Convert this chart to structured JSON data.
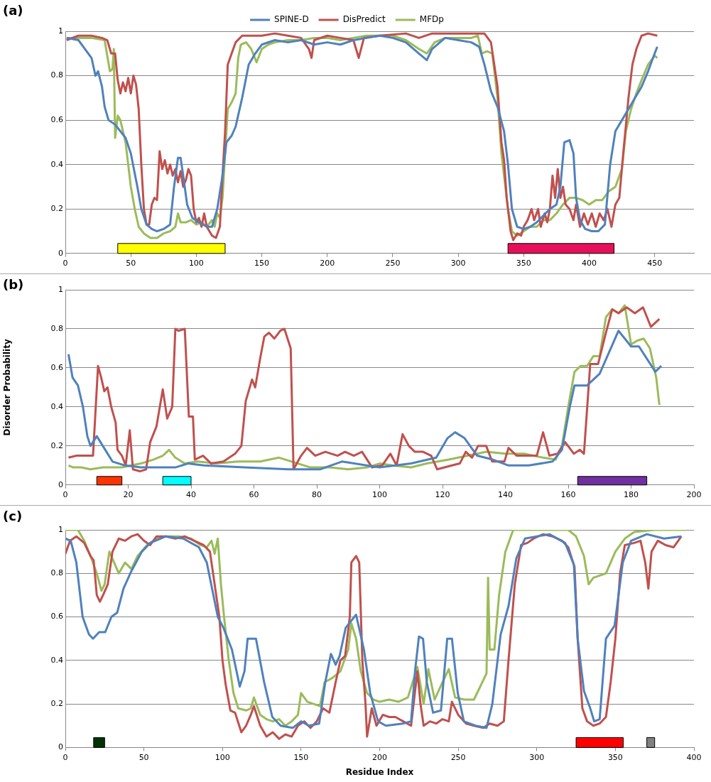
{
  "chart_data": [
    {
      "type": "line",
      "title": "(a)",
      "xlim": [
        0,
        480
      ],
      "xticks": [
        0,
        50,
        100,
        150,
        200,
        250,
        300,
        350,
        400,
        450
      ],
      "ylim": [
        0,
        1
      ],
      "yticks": [
        0,
        0.2,
        0.4,
        0.6,
        0.8,
        1
      ],
      "grid": "y",
      "legend": "top",
      "marker": "none",
      "line_style": "solid",
      "bands": [
        {
          "axis": "x",
          "from": 40,
          "to": 122,
          "color": "#ffff00"
        },
        {
          "axis": "x",
          "from": 338,
          "to": 419,
          "color": "#e6105a"
        }
      ],
      "series": [
        {
          "name": "SPINE-D",
          "color": "#4f81bd",
          "x": [
            1,
            10,
            15,
            20,
            23,
            25,
            28,
            30,
            33,
            38,
            42,
            46,
            50,
            55,
            58,
            62,
            66,
            70,
            75,
            80,
            83,
            86,
            88,
            90,
            93,
            97,
            102,
            108,
            112,
            116,
            120,
            123,
            127,
            130,
            135,
            140,
            145,
            150,
            160,
            170,
            180,
            190,
            200,
            210,
            220,
            230,
            240,
            250,
            260,
            270,
            276,
            280,
            290,
            300,
            310,
            316,
            320,
            325,
            330,
            335,
            338,
            341,
            345,
            350,
            355,
            360,
            365,
            370,
            375,
            378,
            381,
            385,
            388,
            390,
            393,
            397,
            402,
            407,
            412,
            416,
            420,
            425,
            430,
            435,
            440,
            445,
            450,
            452
          ],
          "values": [
            0.97,
            0.96,
            0.92,
            0.88,
            0.8,
            0.82,
            0.75,
            0.66,
            0.6,
            0.58,
            0.55,
            0.52,
            0.45,
            0.3,
            0.2,
            0.13,
            0.11,
            0.1,
            0.11,
            0.13,
            0.3,
            0.43,
            0.43,
            0.35,
            0.22,
            0.16,
            0.14,
            0.12,
            0.12,
            0.2,
            0.35,
            0.5,
            0.53,
            0.57,
            0.7,
            0.85,
            0.9,
            0.94,
            0.96,
            0.95,
            0.96,
            0.94,
            0.95,
            0.94,
            0.96,
            0.97,
            0.98,
            0.97,
            0.95,
            0.9,
            0.87,
            0.92,
            0.97,
            0.96,
            0.95,
            0.93,
            0.85,
            0.73,
            0.66,
            0.55,
            0.4,
            0.2,
            0.12,
            0.11,
            0.12,
            0.14,
            0.17,
            0.2,
            0.22,
            0.3,
            0.5,
            0.51,
            0.45,
            0.25,
            0.15,
            0.11,
            0.1,
            0.1,
            0.13,
            0.4,
            0.55,
            0.6,
            0.65,
            0.7,
            0.75,
            0.82,
            0.9,
            0.93
          ]
        },
        {
          "name": "DisPredict",
          "color": "#c0504d",
          "x": [
            1,
            10,
            20,
            28,
            32,
            35,
            38,
            40,
            42,
            44,
            46,
            48,
            50,
            52,
            54,
            56,
            58,
            60,
            62,
            64,
            66,
            68,
            70,
            72,
            74,
            76,
            78,
            80,
            82,
            84,
            86,
            88,
            90,
            92,
            94,
            96,
            98,
            100,
            102,
            104,
            106,
            108,
            110,
            112,
            115,
            118,
            120,
            122,
            124,
            127,
            130,
            135,
            140,
            150,
            160,
            170,
            180,
            186,
            188,
            190,
            200,
            210,
            220,
            224,
            228,
            240,
            260,
            270,
            280,
            290,
            300,
            310,
            320,
            325,
            330,
            333,
            335,
            337,
            340,
            342,
            345,
            348,
            350,
            353,
            356,
            358,
            361,
            363,
            366,
            368,
            370,
            372,
            374,
            376,
            378,
            380,
            382,
            385,
            388,
            390,
            393,
            396,
            399,
            402,
            405,
            408,
            411,
            414,
            417,
            420,
            423,
            426,
            430,
            433,
            436,
            440,
            445,
            452
          ],
          "values": [
            0.96,
            0.98,
            0.98,
            0.97,
            0.96,
            0.9,
            0.9,
            0.78,
            0.72,
            0.77,
            0.73,
            0.79,
            0.72,
            0.8,
            0.76,
            0.65,
            0.4,
            0.2,
            0.13,
            0.13,
            0.22,
            0.25,
            0.24,
            0.46,
            0.38,
            0.42,
            0.36,
            0.4,
            0.35,
            0.38,
            0.32,
            0.37,
            0.3,
            0.33,
            0.38,
            0.35,
            0.2,
            0.14,
            0.16,
            0.12,
            0.18,
            0.12,
            0.1,
            0.08,
            0.07,
            0.12,
            0.35,
            0.55,
            0.85,
            0.9,
            0.95,
            0.98,
            0.98,
            0.98,
            0.99,
            0.98,
            0.97,
            0.92,
            0.88,
            0.96,
            0.98,
            0.97,
            0.96,
            0.88,
            0.97,
            0.98,
            0.99,
            0.97,
            0.99,
            0.99,
            0.99,
            0.99,
            0.99,
            0.95,
            0.75,
            0.5,
            0.42,
            0.25,
            0.1,
            0.06,
            0.09,
            0.08,
            0.12,
            0.15,
            0.2,
            0.15,
            0.2,
            0.12,
            0.18,
            0.14,
            0.2,
            0.35,
            0.25,
            0.38,
            0.25,
            0.3,
            0.22,
            0.2,
            0.15,
            0.22,
            0.12,
            0.18,
            0.13,
            0.18,
            0.12,
            0.18,
            0.15,
            0.2,
            0.12,
            0.22,
            0.25,
            0.45,
            0.7,
            0.85,
            0.92,
            0.98,
            0.99,
            0.98
          ]
        },
        {
          "name": "MFDp",
          "color": "#9bbb59",
          "x": [
            1,
            10,
            20,
            30,
            34,
            36,
            37,
            38,
            40,
            42,
            44,
            46,
            48,
            50,
            53,
            56,
            60,
            65,
            70,
            75,
            80,
            84,
            86,
            88,
            92,
            96,
            100,
            104,
            108,
            112,
            114,
            116,
            118,
            120,
            122,
            124,
            127,
            130,
            132,
            134,
            138,
            142,
            146,
            150,
            155,
            160,
            170,
            180,
            190,
            200,
            210,
            220,
            230,
            240,
            250,
            260,
            265,
            270,
            276,
            282,
            290,
            300,
            310,
            315,
            318,
            322,
            326,
            330,
            333,
            336,
            338,
            341,
            345,
            350,
            355,
            360,
            365,
            370,
            375,
            380,
            385,
            390,
            395,
            400,
            405,
            410,
            415,
            420,
            425,
            428,
            432,
            436,
            440,
            445,
            450,
            452
          ],
          "values": [
            0.97,
            0.97,
            0.97,
            0.96,
            0.82,
            0.83,
            0.92,
            0.52,
            0.62,
            0.6,
            0.55,
            0.5,
            0.4,
            0.3,
            0.2,
            0.12,
            0.09,
            0.07,
            0.07,
            0.09,
            0.1,
            0.12,
            0.18,
            0.14,
            0.14,
            0.15,
            0.13,
            0.14,
            0.12,
            0.15,
            0.12,
            0.18,
            0.16,
            0.25,
            0.45,
            0.65,
            0.68,
            0.72,
            0.88,
            0.94,
            0.95,
            0.92,
            0.86,
            0.92,
            0.94,
            0.95,
            0.96,
            0.96,
            0.97,
            0.97,
            0.96,
            0.97,
            0.98,
            0.98,
            0.98,
            0.96,
            0.94,
            0.92,
            0.9,
            0.95,
            0.97,
            0.97,
            0.97,
            0.98,
            0.9,
            0.91,
            0.9,
            0.7,
            0.45,
            0.3,
            0.2,
            0.1,
            0.08,
            0.1,
            0.12,
            0.12,
            0.15,
            0.15,
            0.18,
            0.22,
            0.25,
            0.25,
            0.24,
            0.22,
            0.24,
            0.24,
            0.28,
            0.3,
            0.38,
            0.55,
            0.65,
            0.72,
            0.78,
            0.85,
            0.89,
            0.88
          ]
        }
      ]
    },
    {
      "type": "line",
      "title": "(b)",
      "ylabel": "Disorder Probability",
      "xlim": [
        0,
        200
      ],
      "xticks": [
        0,
        20,
        40,
        60,
        80,
        100,
        120,
        140,
        160,
        180,
        200
      ],
      "ylim": [
        0,
        1
      ],
      "yticks": [
        0,
        0.2,
        0.4,
        0.6,
        0.8,
        1
      ],
      "grid": "y",
      "marker": "none",
      "line_style": "solid",
      "bands": [
        {
          "axis": "x",
          "from": 10,
          "to": 18,
          "color": "#ff3300"
        },
        {
          "axis": "x",
          "from": 31,
          "to": 40,
          "color": "#00ffff"
        },
        {
          "axis": "x",
          "from": 163,
          "to": 185,
          "color": "#7030a0"
        }
      ],
      "series": [
        {
          "color": "#4f81bd",
          "x": [
            1,
            2.3,
            4,
            5.6,
            7,
            8,
            10,
            12.7,
            15,
            19,
            24,
            35,
            39,
            44,
            57,
            71,
            81,
            88,
            100,
            110,
            118,
            121.6,
            124,
            127,
            131,
            136,
            141,
            147.5,
            155,
            158,
            160.5,
            162,
            166,
            170,
            176,
            180,
            182.5,
            187.7,
            189.6
          ],
          "values": [
            0.67,
            0.55,
            0.51,
            0.4,
            0.25,
            0.2,
            0.25,
            0.18,
            0.12,
            0.1,
            0.09,
            0.09,
            0.11,
            0.1,
            0.09,
            0.08,
            0.08,
            0.12,
            0.09,
            0.11,
            0.14,
            0.24,
            0.27,
            0.24,
            0.15,
            0.13,
            0.1,
            0.1,
            0.12,
            0.18,
            0.4,
            0.51,
            0.51,
            0.57,
            0.79,
            0.71,
            0.71,
            0.58,
            0.61
          ]
        },
        {
          "color": "#c0504d",
          "x": [
            1,
            3.6,
            8.8,
            9.5,
            10.4,
            11.4,
            12.4,
            13.4,
            14.6,
            16,
            16.6,
            18,
            19.2,
            20.5,
            21.5,
            23.7,
            25.7,
            27,
            29,
            31,
            32.4,
            34,
            35,
            36,
            38,
            39.3,
            40.6,
            41.2,
            43.8,
            46.4,
            50.3,
            54,
            56,
            57.4,
            59.4,
            60.4,
            62,
            63.3,
            64.8,
            66.5,
            68.4,
            69.7,
            71.7,
            72.6,
            75,
            76.9,
            79.5,
            82.7,
            86.6,
            89,
            91.8,
            94.4,
            97.6,
            100.8,
            103.4,
            105.4,
            107.3,
            109.3,
            111.2,
            113.8,
            116.4,
            118.3,
            123,
            125.5,
            127.4,
            129.4,
            131.3,
            133.9,
            135.8,
            139.7,
            141,
            143.6,
            147.5,
            150,
            152,
            154,
            156.6,
            159,
            161.8,
            163.7,
            165,
            167,
            169.5,
            172,
            174,
            176,
            178.6,
            181.2,
            183.8,
            186.3,
            189
          ],
          "values": [
            0.14,
            0.15,
            0.15,
            0.35,
            0.61,
            0.55,
            0.48,
            0.5,
            0.4,
            0.32,
            0.18,
            0.15,
            0.1,
            0.28,
            0.08,
            0.07,
            0.08,
            0.22,
            0.3,
            0.49,
            0.34,
            0.4,
            0.8,
            0.79,
            0.8,
            0.35,
            0.35,
            0.13,
            0.15,
            0.11,
            0.12,
            0.16,
            0.2,
            0.43,
            0.54,
            0.5,
            0.65,
            0.76,
            0.78,
            0.75,
            0.79,
            0.8,
            0.7,
            0.08,
            0.15,
            0.19,
            0.15,
            0.17,
            0.15,
            0.17,
            0.15,
            0.17,
            0.09,
            0.1,
            0.16,
            0.1,
            0.26,
            0.2,
            0.17,
            0.17,
            0.15,
            0.08,
            0.1,
            0.11,
            0.17,
            0.14,
            0.2,
            0.2,
            0.12,
            0.12,
            0.19,
            0.15,
            0.15,
            0.15,
            0.27,
            0.15,
            0.16,
            0.22,
            0.16,
            0.18,
            0.16,
            0.62,
            0.62,
            0.78,
            0.9,
            0.88,
            0.91,
            0.88,
            0.91,
            0.81,
            0.85
          ]
        },
        {
          "color": "#9bbb59",
          "x": [
            1,
            2.5,
            5,
            8,
            12,
            18,
            24,
            28,
            31,
            33,
            35,
            38,
            42,
            48,
            55,
            62,
            68,
            72,
            78,
            84,
            90,
            96,
            100,
            104,
            110,
            115,
            122,
            128,
            134,
            140,
            146,
            152,
            156,
            158,
            160,
            162,
            164,
            166,
            168,
            170,
            172,
            174,
            176,
            178,
            180,
            182,
            184,
            186,
            188,
            189
          ],
          "values": [
            0.1,
            0.09,
            0.09,
            0.08,
            0.09,
            0.09,
            0.11,
            0.13,
            0.15,
            0.18,
            0.14,
            0.11,
            0.12,
            0.11,
            0.12,
            0.12,
            0.14,
            0.12,
            0.09,
            0.09,
            0.08,
            0.09,
            0.11,
            0.1,
            0.09,
            0.11,
            0.13,
            0.15,
            0.17,
            0.16,
            0.16,
            0.14,
            0.13,
            0.2,
            0.4,
            0.58,
            0.61,
            0.61,
            0.66,
            0.66,
            0.86,
            0.9,
            0.88,
            0.92,
            0.72,
            0.74,
            0.75,
            0.7,
            0.55,
            0.41
          ]
        }
      ]
    },
    {
      "type": "line",
      "title": "(c)",
      "xlabel": "Residue Index",
      "xlim": [
        0,
        400
      ],
      "xticks": [
        0,
        50,
        100,
        150,
        200,
        250,
        300,
        350,
        400
      ],
      "ylim": [
        0,
        1
      ],
      "yticks": [
        0,
        0.2,
        0.4,
        0.6,
        0.8,
        1
      ],
      "grid": "y",
      "marker": "none",
      "line_style": "solid",
      "bands": [
        {
          "axis": "x",
          "from": 18,
          "to": 25,
          "color": "#003300"
        },
        {
          "axis": "x",
          "from": 325,
          "to": 355,
          "color": "#ff0000"
        },
        {
          "axis": "x",
          "from": 370,
          "to": 375,
          "color": "#808080"
        }
      ],
      "series": [
        {
          "color": "#4f81bd",
          "x": [
            0,
            3.4,
            7,
            11,
            15,
            17.6,
            21.5,
            25.4,
            29.3,
            33,
            37,
            42,
            48.7,
            54,
            64,
            75,
            85,
            90,
            97,
            100.6,
            106,
            111,
            114,
            116,
            121.3,
            126.5,
            131.7,
            137,
            144.7,
            150,
            155,
            161.5,
            165.4,
            169,
            172,
            174.5,
            178.4,
            185,
            190,
            194,
            199,
            204,
            214.7,
            220,
            222.5,
            225,
            227.6,
            230,
            234,
            239,
            243,
            246,
            249.7,
            253.6,
            261,
            268,
            271.7,
            277,
            282,
            287,
            292.5,
            308,
            318,
            323.6,
            326,
            330,
            334,
            336.5,
            340,
            344,
            349.5,
            354.7,
            360,
            370,
            381,
            392
          ],
          "values": [
            0.96,
            0.95,
            0.85,
            0.6,
            0.52,
            0.5,
            0.53,
            0.53,
            0.6,
            0.62,
            0.73,
            0.81,
            0.9,
            0.94,
            0.97,
            0.96,
            0.92,
            0.85,
            0.6,
            0.55,
            0.45,
            0.28,
            0.35,
            0.5,
            0.5,
            0.3,
            0.14,
            0.1,
            0.09,
            0.12,
            0.1,
            0.11,
            0.3,
            0.43,
            0.38,
            0.42,
            0.55,
            0.61,
            0.45,
            0.25,
            0.12,
            0.1,
            0.11,
            0.12,
            0.35,
            0.51,
            0.5,
            0.3,
            0.16,
            0.17,
            0.5,
            0.5,
            0.25,
            0.12,
            0.1,
            0.09,
            0.2,
            0.52,
            0.65,
            0.87,
            0.96,
            0.98,
            0.94,
            0.84,
            0.5,
            0.26,
            0.18,
            0.12,
            0.13,
            0.5,
            0.56,
            0.85,
            0.95,
            0.98,
            0.96,
            0.97
          ]
        },
        {
          "color": "#c0504d",
          "x": [
            0,
            3,
            7,
            12,
            16,
            18,
            20,
            22,
            24,
            27,
            30,
            34,
            38,
            42,
            46,
            50,
            54,
            58,
            64,
            70,
            76,
            82,
            88,
            92,
            95,
            98,
            100,
            102,
            105,
            108,
            112,
            115,
            118,
            120,
            124,
            128,
            132,
            136,
            140,
            144,
            148,
            152,
            156,
            160,
            164,
            168,
            172,
            175,
            178,
            181,
            182,
            185,
            187,
            189,
            191,
            192,
            195,
            198,
            202,
            206,
            210,
            215,
            220,
            224,
            226,
            228,
            232,
            236,
            240,
            244,
            246,
            250,
            255,
            260,
            266,
            270,
            275,
            279,
            282,
            286,
            290,
            294,
            298,
            304,
            310,
            316,
            320,
            324,
            326,
            329,
            332,
            336,
            340,
            344,
            347,
            350,
            353,
            356,
            362,
            366,
            369,
            371,
            373,
            377,
            382,
            387,
            392
          ],
          "values": [
            0.89,
            0.95,
            0.97,
            0.94,
            0.88,
            0.86,
            0.7,
            0.67,
            0.7,
            0.75,
            0.9,
            0.96,
            0.95,
            0.97,
            0.98,
            0.95,
            0.93,
            0.97,
            0.97,
            0.96,
            0.97,
            0.95,
            0.93,
            0.9,
            0.75,
            0.6,
            0.4,
            0.29,
            0.17,
            0.16,
            0.07,
            0.1,
            0.15,
            0.19,
            0.1,
            0.05,
            0.07,
            0.04,
            0.06,
            0.05,
            0.1,
            0.12,
            0.09,
            0.12,
            0.18,
            0.16,
            0.3,
            0.4,
            0.42,
            0.6,
            0.85,
            0.88,
            0.85,
            0.4,
            0.2,
            0.05,
            0.18,
            0.1,
            0.15,
            0.14,
            0.14,
            0.12,
            0.1,
            0.35,
            0.2,
            0.1,
            0.12,
            0.11,
            0.13,
            0.12,
            0.21,
            0.15,
            0.11,
            0.1,
            0.09,
            0.11,
            0.1,
            0.12,
            0.4,
            0.75,
            0.93,
            0.94,
            0.96,
            0.98,
            0.97,
            0.95,
            0.92,
            0.83,
            0.5,
            0.18,
            0.12,
            0.1,
            0.11,
            0.14,
            0.3,
            0.5,
            0.8,
            0.93,
            0.94,
            0.95,
            0.85,
            0.73,
            0.9,
            0.95,
            0.93,
            0.92,
            0.97
          ]
        },
        {
          "color": "#9bbb59",
          "x": [
            0,
            8,
            12,
            16,
            20,
            23,
            25,
            28,
            31,
            34,
            38,
            42,
            46,
            52,
            58,
            64,
            72,
            80,
            86,
            90,
            93,
            95,
            97,
            99,
            101,
            104,
            107,
            110,
            115,
            118,
            120,
            124,
            128,
            132,
            136,
            140,
            144,
            148,
            150,
            154,
            158,
            162,
            165,
            170,
            175,
            180,
            182,
            185,
            188,
            192,
            196,
            200,
            206,
            212,
            218,
            224,
            228,
            231,
            235,
            240,
            244,
            248,
            254,
            260,
            264,
            268,
            269,
            270,
            273,
            276,
            280,
            285,
            300,
            320,
            325,
            330,
            333,
            336,
            340,
            344,
            350,
            356,
            362,
            375,
            395
          ],
          "values": [
            1,
            1,
            0.95,
            0.88,
            0.8,
            0.72,
            0.75,
            0.9,
            0.85,
            0.8,
            0.85,
            0.82,
            0.88,
            0.93,
            0.96,
            0.97,
            0.97,
            0.96,
            0.93,
            0.92,
            0.95,
            0.89,
            0.96,
            0.75,
            0.6,
            0.4,
            0.25,
            0.18,
            0.17,
            0.18,
            0.23,
            0.15,
            0.13,
            0.12,
            0.13,
            0.1,
            0.12,
            0.15,
            0.25,
            0.21,
            0.2,
            0.19,
            0.3,
            0.32,
            0.35,
            0.45,
            0.57,
            0.5,
            0.35,
            0.25,
            0.22,
            0.21,
            0.22,
            0.21,
            0.23,
            0.37,
            0.2,
            0.36,
            0.22,
            0.3,
            0.36,
            0.23,
            0.22,
            0.22,
            0.28,
            0.34,
            0.78,
            0.45,
            0.45,
            0.7,
            0.9,
            1,
            1,
            1,
            0.97,
            0.88,
            0.75,
            0.78,
            0.79,
            0.8,
            0.9,
            0.96,
            0.99,
            1,
            1
          ]
        }
      ]
    }
  ]
}
